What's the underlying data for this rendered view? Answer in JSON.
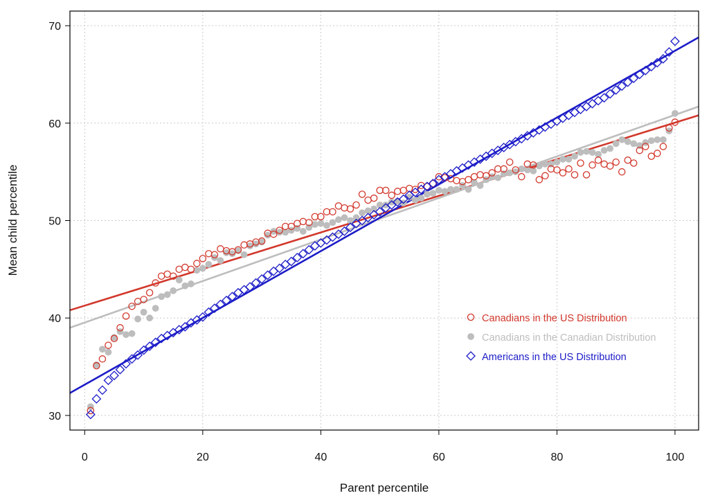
{
  "chart_data": {
    "type": "scatter",
    "title": "",
    "xlabel": "Parent percentile",
    "ylabel": "Mean child percentile",
    "xlim": [
      -2.5,
      104
    ],
    "ylim": [
      28.5,
      71.5
    ],
    "xticks": [
      0,
      20,
      40,
      60,
      80,
      100
    ],
    "yticks": [
      30,
      40,
      50,
      60,
      70
    ],
    "xtick_labels": [
      "0",
      "20",
      "40",
      "60",
      "80",
      "100"
    ],
    "ytick_labels": [
      "30",
      "40",
      "50",
      "60",
      "70"
    ],
    "grid": true,
    "legend_position": "center-right",
    "series": [
      {
        "name": "Canadians in the US Distribution",
        "marker": "open-circle",
        "color": "#d2382c",
        "x": [
          1,
          2,
          3,
          4,
          5,
          6,
          7,
          8,
          9,
          10,
          11,
          12,
          13,
          14,
          15,
          16,
          17,
          18,
          19,
          20,
          21,
          22,
          23,
          24,
          25,
          26,
          27,
          28,
          29,
          30,
          31,
          32,
          33,
          34,
          35,
          36,
          37,
          38,
          39,
          40,
          41,
          42,
          43,
          44,
          45,
          46,
          47,
          48,
          49,
          50,
          51,
          52,
          53,
          54,
          55,
          56,
          57,
          58,
          59,
          60,
          61,
          62,
          63,
          64,
          65,
          66,
          67,
          68,
          69,
          70,
          71,
          72,
          73,
          74,
          75,
          76,
          77,
          78,
          79,
          80,
          81,
          82,
          83,
          84,
          85,
          86,
          87,
          88,
          89,
          90,
          91,
          92,
          93,
          94,
          95,
          96,
          97,
          98,
          99,
          100
        ],
        "y": [
          30.5,
          35.1,
          35.8,
          37.2,
          37.9,
          39.0,
          40.2,
          41.2,
          41.7,
          41.9,
          42.6,
          43.6,
          44.3,
          44.5,
          44.3,
          45.0,
          45.2,
          45.0,
          45.6,
          46.1,
          46.6,
          46.5,
          47.1,
          46.9,
          46.8,
          47.0,
          47.5,
          47.6,
          47.8,
          47.9,
          48.7,
          48.6,
          49.0,
          49.4,
          49.4,
          49.7,
          49.9,
          49.8,
          50.4,
          50.4,
          50.9,
          50.9,
          51.5,
          51.3,
          51.2,
          51.6,
          52.7,
          52.1,
          52.3,
          53.1,
          53.1,
          52.6,
          53.0,
          53.1,
          53.3,
          53.2,
          53.6,
          53.5,
          53.8,
          54.5,
          54.4,
          54.3,
          54.1,
          54.0,
          54.2,
          54.5,
          54.7,
          54.6,
          54.9,
          55.3,
          55.3,
          56.0,
          55.2,
          54.5,
          55.8,
          55.7,
          54.2,
          54.6,
          55.3,
          55.2,
          54.9,
          55.3,
          54.7,
          55.9,
          54.7,
          55.7,
          56.2,
          55.8,
          55.6,
          56.0,
          55.0,
          56.2,
          55.9,
          57.2,
          57.6,
          56.6,
          56.9,
          57.6,
          59.5,
          60.1
        ]
      },
      {
        "name": "Canadians in the Canadian Distribution",
        "marker": "filled-circle",
        "color": "#bdbdbd",
        "x": [
          1,
          2,
          3,
          4,
          5,
          6,
          7,
          8,
          9,
          10,
          11,
          12,
          13,
          14,
          15,
          16,
          17,
          18,
          19,
          20,
          21,
          22,
          23,
          24,
          25,
          26,
          27,
          28,
          29,
          30,
          31,
          32,
          33,
          34,
          35,
          36,
          37,
          38,
          39,
          40,
          41,
          42,
          43,
          44,
          45,
          46,
          47,
          48,
          49,
          50,
          51,
          52,
          53,
          54,
          55,
          56,
          57,
          58,
          59,
          60,
          61,
          62,
          63,
          64,
          65,
          66,
          67,
          68,
          69,
          70,
          71,
          72,
          73,
          74,
          75,
          76,
          77,
          78,
          79,
          80,
          81,
          82,
          83,
          84,
          85,
          86,
          87,
          88,
          89,
          90,
          91,
          92,
          93,
          94,
          95,
          96,
          97,
          98,
          99,
          100
        ],
        "y": [
          30.9,
          35.2,
          36.8,
          36.5,
          38.0,
          38.6,
          38.3,
          38.4,
          39.9,
          40.6,
          40.0,
          41.0,
          42.2,
          42.4,
          42.8,
          43.9,
          43.3,
          43.5,
          44.9,
          45.1,
          45.5,
          46.2,
          45.9,
          46.7,
          46.6,
          46.9,
          46.5,
          47.4,
          47.6,
          47.8,
          48.5,
          48.9,
          48.8,
          48.8,
          49.0,
          49.2,
          48.9,
          49.3,
          49.6,
          49.7,
          49.5,
          49.8,
          50.1,
          50.3,
          50.0,
          50.3,
          50.8,
          51.0,
          51.2,
          51.6,
          51.6,
          51.9,
          52.0,
          51.8,
          52.4,
          52.1,
          52.3,
          52.7,
          52.8,
          53.1,
          53.0,
          53.2,
          53.2,
          53.6,
          53.2,
          53.9,
          53.6,
          54.2,
          54.5,
          54.4,
          54.8,
          54.9,
          55.0,
          55.3,
          55.2,
          55.1,
          55.6,
          55.8,
          55.8,
          56.0,
          56.3,
          56.3,
          56.6,
          57.0,
          57.1,
          57.0,
          56.8,
          57.2,
          57.4,
          57.9,
          58.3,
          58.1,
          57.9,
          57.7,
          58.0,
          58.2,
          58.3,
          58.3,
          59.2,
          61.0
        ]
      },
      {
        "name": "Americans in the US Distribution",
        "marker": "open-diamond",
        "color": "#1c1cc8",
        "x": [
          1,
          2,
          3,
          4,
          5,
          6,
          7,
          8,
          9,
          10,
          11,
          12,
          13,
          14,
          15,
          16,
          17,
          18,
          19,
          20,
          21,
          22,
          23,
          24,
          25,
          26,
          27,
          28,
          29,
          30,
          31,
          32,
          33,
          34,
          35,
          36,
          37,
          38,
          39,
          40,
          41,
          42,
          43,
          44,
          45,
          46,
          47,
          48,
          49,
          50,
          51,
          52,
          53,
          54,
          55,
          56,
          57,
          58,
          59,
          60,
          61,
          62,
          63,
          64,
          65,
          66,
          67,
          68,
          69,
          70,
          71,
          72,
          73,
          74,
          75,
          76,
          77,
          78,
          79,
          80,
          81,
          82,
          83,
          84,
          85,
          86,
          87,
          88,
          89,
          90,
          91,
          92,
          93,
          94,
          95,
          96,
          97,
          98,
          99,
          100
        ],
        "y": [
          30.1,
          31.7,
          32.6,
          33.6,
          34.1,
          34.7,
          35.3,
          35.8,
          36.2,
          36.7,
          37.1,
          37.5,
          37.9,
          38.2,
          38.5,
          38.8,
          39.1,
          39.5,
          39.8,
          40.1,
          40.6,
          41.0,
          41.4,
          41.8,
          42.2,
          42.6,
          42.9,
          43.2,
          43.6,
          44.0,
          44.4,
          44.8,
          45.1,
          45.5,
          45.8,
          46.2,
          46.6,
          47.0,
          47.4,
          47.7,
          48.0,
          48.3,
          48.6,
          48.9,
          49.3,
          49.7,
          50.0,
          50.3,
          50.6,
          50.9,
          51.3,
          51.6,
          51.9,
          52.2,
          52.6,
          52.9,
          53.2,
          53.5,
          53.8,
          54.2,
          54.5,
          54.8,
          55.1,
          55.4,
          55.7,
          56.0,
          56.3,
          56.6,
          56.9,
          57.2,
          57.5,
          57.8,
          58.1,
          58.4,
          58.7,
          59.0,
          59.3,
          59.6,
          59.9,
          60.2,
          60.5,
          60.8,
          61.1,
          61.4,
          61.7,
          62.0,
          62.3,
          62.6,
          63.0,
          63.4,
          63.8,
          64.2,
          64.6,
          65.0,
          65.4,
          65.8,
          66.2,
          66.6,
          67.3,
          68.4
        ]
      }
    ],
    "fit_lines": [
      {
        "series": "Canadians in the US Distribution",
        "color": "#d2382c",
        "x": [
          -2.5,
          104
        ],
        "y": [
          40.8,
          60.8
        ]
      },
      {
        "series": "Canadians in the Canadian Distribution",
        "color": "#bdbdbd",
        "x": [
          -2.5,
          104
        ],
        "y": [
          39.0,
          61.7
        ]
      },
      {
        "series": "Americans in the US Distribution",
        "color": "#1c1cc8",
        "x": [
          -2.5,
          104
        ],
        "y": [
          32.3,
          68.8
        ]
      }
    ]
  }
}
